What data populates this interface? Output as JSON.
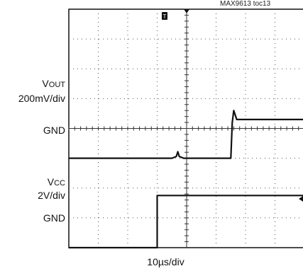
{
  "figure_id": "MAX9613 toc13",
  "chart_data": {
    "type": "line",
    "title": "",
    "xlabel": "10µs/div",
    "time_per_div_us": 10,
    "divisions": {
      "x": 10,
      "y": 8
    },
    "grid": true,
    "channels": [
      {
        "name": "VOUT",
        "name_main": "V",
        "name_sub": "OUT",
        "scale_label": "200mV/div",
        "ground_label": "GND",
        "ground_div_from_top": 5,
        "points": [
          [
            -4.2,
            0.0
          ],
          [
            -0.5,
            0.0
          ],
          [
            -0.35,
            0.06
          ],
          [
            -0.3,
            0.22
          ],
          [
            -0.25,
            0.06
          ],
          [
            -0.1,
            0.0
          ],
          [
            1.5,
            0.0
          ],
          [
            1.55,
            1.2
          ],
          [
            1.6,
            1.6
          ],
          [
            1.7,
            1.3
          ],
          [
            1.8,
            1.3
          ],
          [
            5.8,
            1.3
          ]
        ]
      },
      {
        "name": "VCC",
        "name_main": "V",
        "name_sub": "CC",
        "scale_label": "2V/div",
        "ground_label": "GND",
        "ground_div_from_top": 8,
        "points": [
          [
            -4.2,
            0.0
          ],
          [
            -1.0,
            0.0
          ],
          [
            -1.0,
            1.75
          ],
          [
            5.8,
            1.75
          ]
        ]
      }
    ],
    "trigger_marker": "T"
  }
}
